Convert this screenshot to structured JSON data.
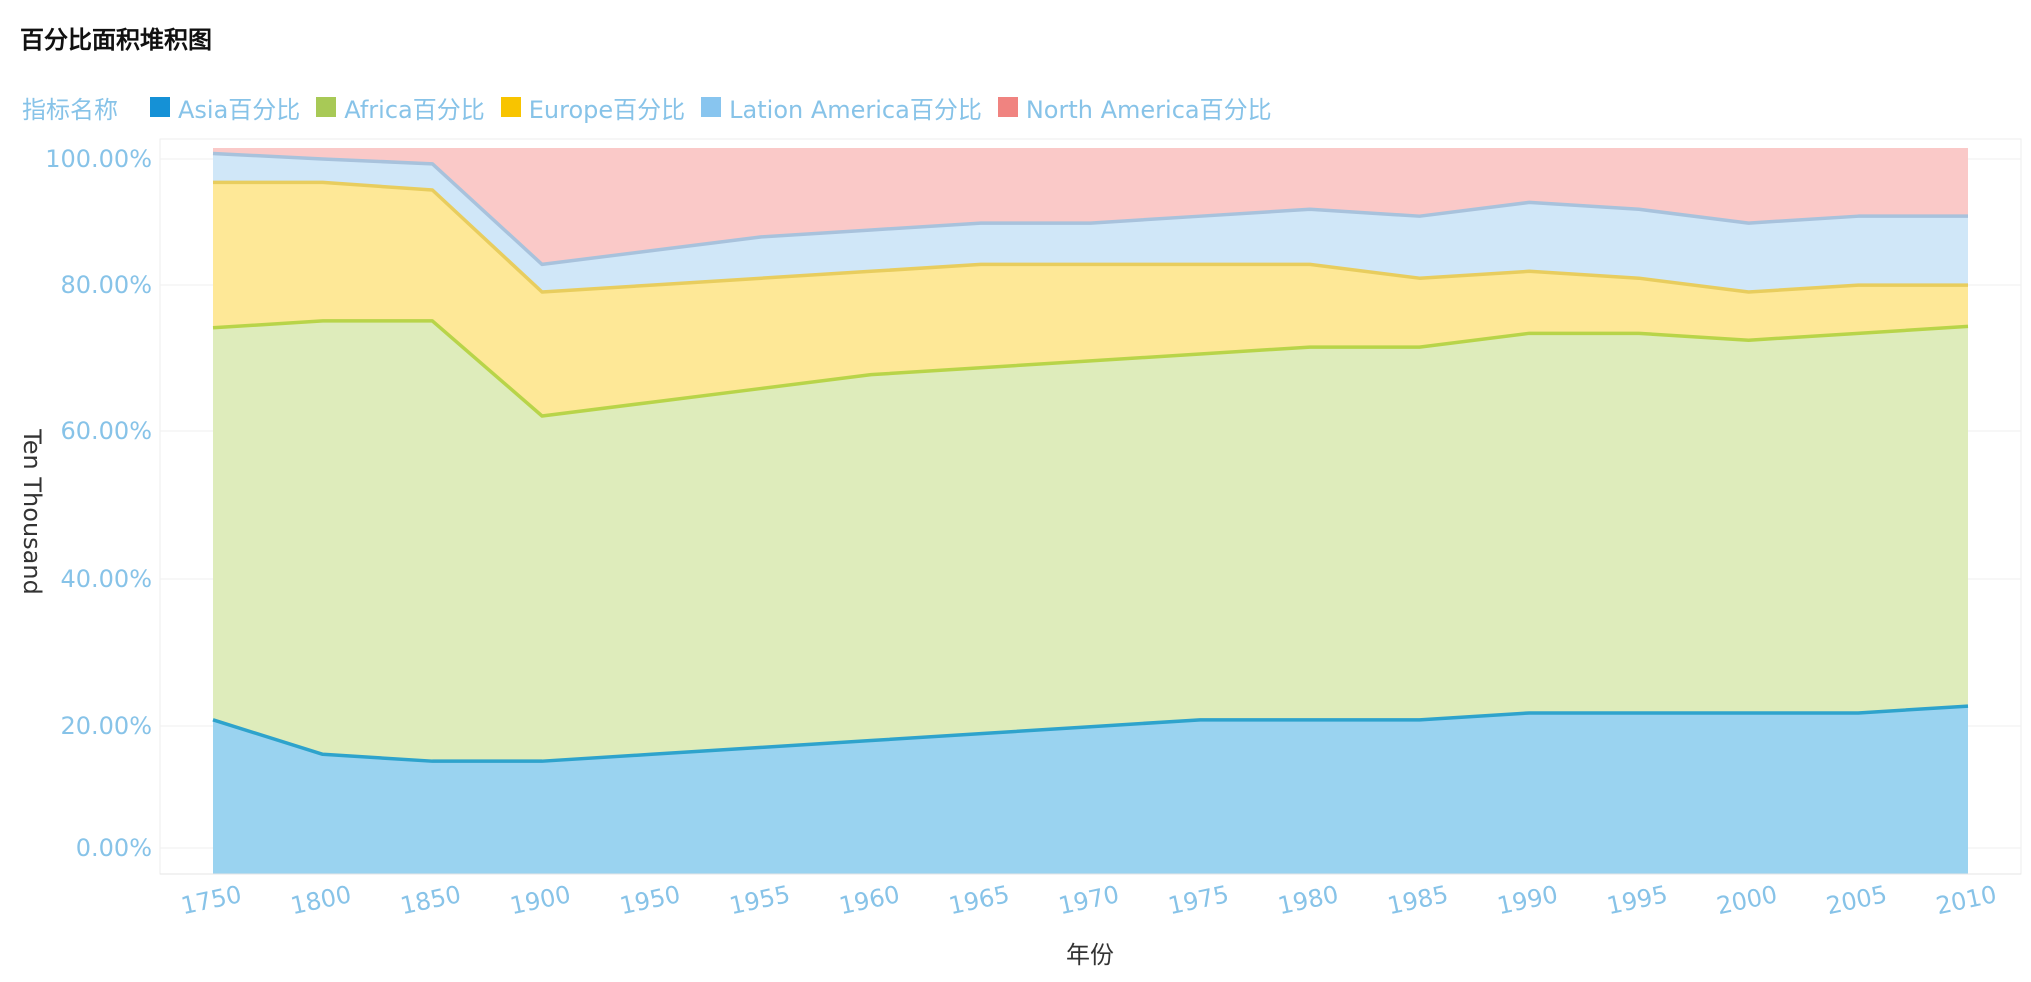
{
  "chart_data": {
    "type": "area",
    "stacked": "percent",
    "title": "百分比面积堆积图",
    "legend_title": "指标名称",
    "legend_position": "top-left",
    "xlabel": "年份",
    "ylabel": "Ten Thousand",
    "yticks": [
      "0.00%",
      "20.00%",
      "40.00%",
      "60.00%",
      "80.00%",
      "100.00%"
    ],
    "ylim": [
      0,
      100
    ],
    "grid": true,
    "categories": [
      "1750",
      "1800",
      "1850",
      "1900",
      "1950",
      "1955",
      "1960",
      "1965",
      "1970",
      "1975",
      "1980",
      "1985",
      "1990",
      "1995",
      "2000",
      "2005",
      "2010"
    ],
    "series": [
      {
        "name": "Asia百分比",
        "color": "#1591d6",
        "fill": "#9ad3f0",
        "line": "#2ea3cc",
        "cumulative": [
          18.6,
          13.6,
          12.6,
          12.6,
          13.6,
          14.6,
          15.6,
          16.6,
          17.6,
          18.6,
          18.6,
          18.6,
          19.6,
          19.6,
          19.6,
          19.6,
          20.6
        ]
      },
      {
        "name": "Africa百分比",
        "color": "#a8c956",
        "fill": "#deecbb",
        "line": "#b8d449",
        "cumulative": [
          75.5,
          76.5,
          76.5,
          62.7,
          64.7,
          66.7,
          68.7,
          69.7,
          70.7,
          71.7,
          72.7,
          72.7,
          74.7,
          74.7,
          73.7,
          74.7,
          75.7
        ]
      },
      {
        "name": "Europe百分比",
        "color": "#f8c400",
        "fill": "#fee897",
        "line": "#e8cd5e",
        "cumulative": [
          96.6,
          96.6,
          95.5,
          80.7,
          81.7,
          82.7,
          83.7,
          84.7,
          84.7,
          84.7,
          84.7,
          82.7,
          83.7,
          82.7,
          80.7,
          81.7,
          81.7
        ]
      },
      {
        "name": "Lation America百分比",
        "color": "#88c5ef",
        "fill": "#d0e7f8",
        "line": "#a8c2dc",
        "cumulative": [
          100.8,
          100.0,
          99.3,
          84.7,
          86.7,
          88.7,
          89.7,
          90.7,
          90.7,
          91.7,
          92.7,
          91.7,
          93.7,
          92.7,
          90.7,
          91.7,
          91.7
        ]
      },
      {
        "name": "North America百分比",
        "color": "#f08380",
        "fill": "#fac9c8",
        "line": "#fac9c8",
        "cumulative": [
          101.6,
          101.6,
          101.6,
          101.6,
          101.6,
          101.6,
          101.6,
          101.6,
          101.6,
          101.6,
          101.6,
          101.6,
          101.6,
          101.6,
          101.6,
          101.6,
          101.6
        ]
      }
    ]
  }
}
